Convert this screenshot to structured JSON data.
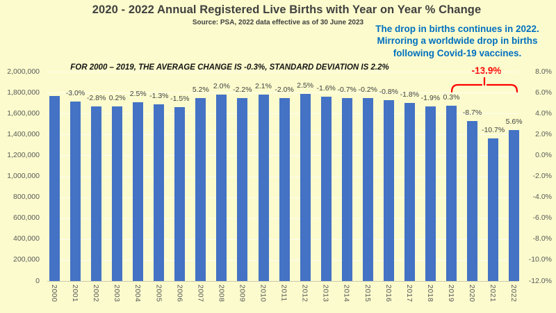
{
  "page": {
    "background": "#FBFBCD"
  },
  "header": {
    "title": "2020 - 2022 Annual Registered Live Births with Year on Year % Change",
    "subtitle": "Source: PSA, 2022 data effective as of 30 June 2023"
  },
  "annotations": {
    "note": {
      "color": "#0070C0",
      "lines": [
        "The drop in births continues in 2022.",
        "Mirroring a worldwide drop in births",
        "following Covid-19 vaccines."
      ]
    },
    "stats_note": "FOR 2000 – 2019, THE AVERAGE CHANGE IS -0.3%, STANDARD DEVIATION IS 2.2%",
    "bracket": {
      "label": "-13.9%",
      "color": "#FF0000",
      "covers_years": [
        "2020",
        "2021",
        "2022"
      ]
    }
  },
  "chart_data": {
    "type": "bar",
    "title": "2020 - 2022 Annual Registered Live Births with Year on Year % Change",
    "categories": [
      "2000",
      "2001",
      "2002",
      "2003",
      "2004",
      "2005",
      "2006",
      "2007",
      "2008",
      "2009",
      "2010",
      "2011",
      "2012",
      "2013",
      "2014",
      "2015",
      "2016",
      "2017",
      "2018",
      "2019",
      "2020",
      "2021",
      "2022"
    ],
    "series": [
      {
        "name": "Annual registered live births (estimated from left axis gridlines)",
        "values": [
          1766000,
          1714000,
          1666000,
          1669000,
          1711000,
          1689000,
          1663000,
          1750000,
          1784000,
          1746000,
          1783000,
          1747000,
          1790000,
          1762000,
          1749000,
          1745000,
          1731000,
          1701000,
          1668000,
          1674000,
          1529000,
          1365000,
          1441000
        ]
      }
    ],
    "point_labels": [
      "",
      "-3.0%",
      "-2.8%",
      "0.2%",
      "2.5%",
      "-1.3%",
      "-1.5%",
      "5.2%",
      "2.0%",
      "-2.2%",
      "2.1%",
      "-2.0%",
      "2.5%",
      "-1.6%",
      "-0.7%",
      "-0.2%",
      "-0.8%",
      "-1.8%",
      "-1.9%",
      "0.3%",
      "-8.7%",
      "-10.7%",
      "5.6%"
    ],
    "y_axis_left": {
      "min": 0,
      "max": 2000000,
      "step": 200000,
      "ticks": [
        "2,000,000",
        "1,800,000",
        "1,600,000",
        "1,400,000",
        "1,200,000",
        "1,000,000",
        "800,000",
        "600,000",
        "400,000",
        "200,000",
        "0"
      ]
    },
    "y_axis_right": {
      "min": -12.0,
      "max": 8.0,
      "step": 2.0,
      "ticks": [
        "8.0%",
        "6.0%",
        "4.0%",
        "2.0%",
        "0.0%",
        "-2.0%",
        "-4.0%",
        "-6.0%",
        "-8.0%",
        "-10.0%",
        "-12.0%"
      ]
    },
    "bar_color": "#4472C4",
    "grid": true,
    "legend": "none"
  }
}
